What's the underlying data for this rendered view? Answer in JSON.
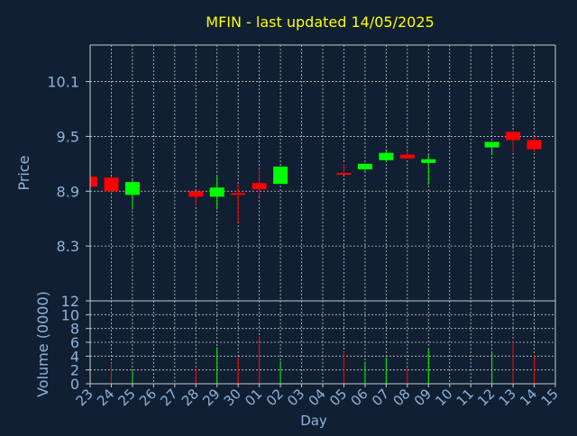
{
  "colors": {
    "background": "#111f33",
    "title": "#ffff00",
    "axis_text": "#8fb3d9",
    "axis_line": "#c8c8c8",
    "grid": "#c8c8c8",
    "up": "#00ff00",
    "down": "#ff0000",
    "day_label": "#000000"
  },
  "chart_data": {
    "type": "candlestick",
    "title": "MFIN - last updated 14/05/2025",
    "xlabel": "Day",
    "ylabel_price": "Price",
    "ylabel_volume": "Volume (0000)",
    "grid": true,
    "days": [
      "23",
      "24",
      "25",
      "26",
      "27",
      "28",
      "29",
      "30",
      "01",
      "02",
      "03",
      "04",
      "05",
      "06",
      "07",
      "08",
      "09",
      "10",
      "11",
      "12",
      "13",
      "14",
      "15"
    ],
    "price_ylim": [
      7.7,
      10.5
    ],
    "price_ticks": [
      "10.1",
      "9.5",
      "8.9",
      "8.3"
    ],
    "volume_ylim": [
      0,
      12
    ],
    "volume_ticks": [
      "0",
      "2",
      "4",
      "6",
      "8",
      "10",
      "12"
    ],
    "candles": [
      {
        "day": "23",
        "open": 9.06,
        "close": 8.95,
        "high": 9.06,
        "low": 8.95
      },
      {
        "day": "24",
        "open": 9.05,
        "close": 8.9,
        "high": 9.06,
        "low": 8.88
      },
      {
        "day": "25",
        "open": 8.86,
        "close": 9.0,
        "high": 9.02,
        "low": 8.7
      },
      {
        "day": "28",
        "open": 8.9,
        "close": 8.84,
        "high": 8.9,
        "low": 8.74
      },
      {
        "day": "29",
        "open": 8.84,
        "close": 8.94,
        "high": 9.07,
        "low": 8.7
      },
      {
        "day": "30",
        "open": 8.88,
        "close": 8.88,
        "high": 8.98,
        "low": 8.56
      },
      {
        "day": "01",
        "open": 8.99,
        "close": 8.92,
        "high": 9.15,
        "low": 8.84
      },
      {
        "day": "02",
        "open": 8.98,
        "close": 9.17,
        "high": 9.17,
        "low": 8.98
      },
      {
        "day": "05",
        "open": 9.1,
        "close": 9.1,
        "high": 9.2,
        "low": 9.1
      },
      {
        "day": "06",
        "open": 9.14,
        "close": 9.2,
        "high": 9.2,
        "low": 9.12
      },
      {
        "day": "07",
        "open": 9.24,
        "close": 9.32,
        "high": 9.36,
        "low": 9.22
      },
      {
        "day": "08",
        "open": 9.3,
        "close": 9.26,
        "high": 9.34,
        "low": 9.26
      },
      {
        "day": "09",
        "open": 9.21,
        "close": 9.25,
        "high": 9.3,
        "low": 8.97
      },
      {
        "day": "12",
        "open": 9.38,
        "close": 9.44,
        "high": 9.44,
        "low": 9.3
      },
      {
        "day": "13",
        "open": 9.55,
        "close": 9.46,
        "high": 9.56,
        "low": 9.33
      },
      {
        "day": "14",
        "open": 9.46,
        "close": 9.36,
        "high": 9.5,
        "low": 9.33
      }
    ],
    "volume": [
      {
        "day": "24",
        "value": 3.0
      },
      {
        "day": "25",
        "value": 1.8
      },
      {
        "day": "28",
        "value": 2.2
      },
      {
        "day": "29",
        "value": 5.3
      },
      {
        "day": "30",
        "value": 3.8
      },
      {
        "day": "01",
        "value": 6.9
      },
      {
        "day": "02",
        "value": 3.3
      },
      {
        "day": "05",
        "value": 4.6
      },
      {
        "day": "06",
        "value": 3.2
      },
      {
        "day": "07",
        "value": 3.8
      },
      {
        "day": "08",
        "value": 2.3
      },
      {
        "day": "09",
        "value": 5.0
      },
      {
        "day": "12",
        "value": 4.5
      },
      {
        "day": "13",
        "value": 6.3
      },
      {
        "day": "14",
        "value": 4.1
      }
    ]
  }
}
